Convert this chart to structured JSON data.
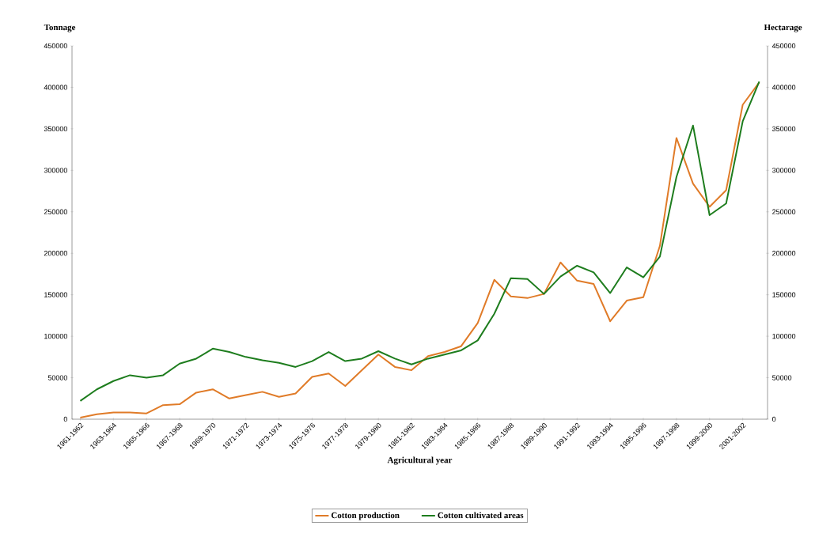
{
  "chart_data": {
    "type": "line",
    "xlabel": "Agricultural year",
    "ylabel": "Tonnage",
    "y2label": "Hectarage",
    "categories": [
      "1961-1962",
      null,
      "1963-1964",
      null,
      "1965-1966",
      null,
      "1967-1968",
      null,
      "1969-1970",
      null,
      "1971-1972",
      null,
      "1973-1974",
      null,
      "1975-1976",
      null,
      "1977-1978",
      null,
      "1979-1980",
      null,
      "1981-1982",
      null,
      "1983-1984",
      null,
      "1985-1986",
      null,
      "1987-1988",
      null,
      "1989-1990",
      null,
      "1991-1992",
      null,
      "1993-1994",
      null,
      "1995-1996",
      null,
      "1997-1998",
      null,
      "1999-2000",
      null,
      "2001-2002",
      null
    ],
    "series": [
      {
        "name": "Cotton production",
        "color": "#e07b28",
        "values": [
          2000,
          6000,
          8000,
          8000,
          7000,
          17000,
          18000,
          32000,
          36000,
          25000,
          29000,
          33000,
          27000,
          31000,
          51000,
          55000,
          40000,
          59000,
          78000,
          63000,
          59000,
          76000,
          81000,
          88000,
          116000,
          168000,
          148000,
          146000,
          151000,
          189000,
          167000,
          163000,
          118000,
          143000,
          147000,
          209000,
          339000,
          284000,
          256000,
          276000,
          379000,
          406000
        ]
      },
      {
        "name": "Cotton cultivated areas",
        "color": "#1e7d1e",
        "axis": "y2",
        "values": [
          22000,
          36000,
          46000,
          53000,
          50000,
          53000,
          67000,
          73000,
          85000,
          81000,
          75000,
          71000,
          68000,
          63000,
          70000,
          81000,
          70000,
          73000,
          82000,
          73000,
          66000,
          73000,
          78000,
          83000,
          95000,
          127000,
          170000,
          169000,
          151000,
          172000,
          185000,
          177000,
          152000,
          183000,
          171000,
          196000,
          292000,
          354000,
          246000,
          260000,
          359000,
          407000
        ]
      }
    ],
    "ylim": [
      0,
      450000
    ],
    "yticks": [
      0,
      50000,
      100000,
      150000,
      200000,
      250000,
      300000,
      350000,
      400000,
      450000
    ],
    "y2lim": [
      0,
      450000
    ],
    "y2ticks": [
      0,
      50000,
      100000,
      150000,
      200000,
      250000,
      300000,
      350000,
      400000,
      450000
    ],
    "legend": "bottom"
  }
}
